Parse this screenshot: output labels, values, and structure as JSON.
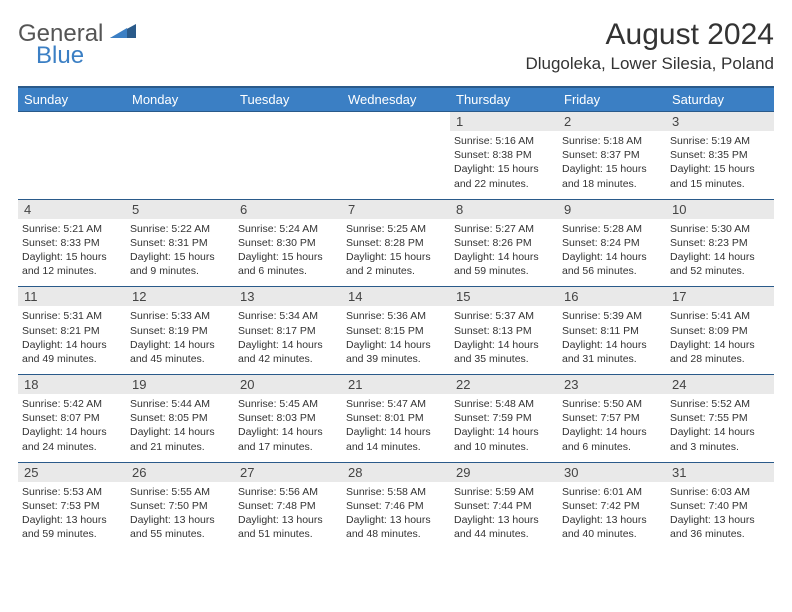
{
  "logo": {
    "textTop": "General",
    "textBottom": "Blue"
  },
  "title": "August 2024",
  "location": "Dlugoleka, Lower Silesia, Poland",
  "colors": {
    "headerBg": "#3b7fc4",
    "headerBorder": "#2a5a8a",
    "dayStripe": "#e9e9e9",
    "text": "#333333",
    "logoBlue": "#3b7fc4",
    "logoGray": "#555555"
  },
  "dayHeaders": [
    "Sunday",
    "Monday",
    "Tuesday",
    "Wednesday",
    "Thursday",
    "Friday",
    "Saturday"
  ],
  "weeks": [
    [
      null,
      null,
      null,
      null,
      {
        "n": "1",
        "sr": "5:16 AM",
        "ss": "8:38 PM",
        "dl": "15 hours and 22 minutes."
      },
      {
        "n": "2",
        "sr": "5:18 AM",
        "ss": "8:37 PM",
        "dl": "15 hours and 18 minutes."
      },
      {
        "n": "3",
        "sr": "5:19 AM",
        "ss": "8:35 PM",
        "dl": "15 hours and 15 minutes."
      }
    ],
    [
      {
        "n": "4",
        "sr": "5:21 AM",
        "ss": "8:33 PM",
        "dl": "15 hours and 12 minutes."
      },
      {
        "n": "5",
        "sr": "5:22 AM",
        "ss": "8:31 PM",
        "dl": "15 hours and 9 minutes."
      },
      {
        "n": "6",
        "sr": "5:24 AM",
        "ss": "8:30 PM",
        "dl": "15 hours and 6 minutes."
      },
      {
        "n": "7",
        "sr": "5:25 AM",
        "ss": "8:28 PM",
        "dl": "15 hours and 2 minutes."
      },
      {
        "n": "8",
        "sr": "5:27 AM",
        "ss": "8:26 PM",
        "dl": "14 hours and 59 minutes."
      },
      {
        "n": "9",
        "sr": "5:28 AM",
        "ss": "8:24 PM",
        "dl": "14 hours and 56 minutes."
      },
      {
        "n": "10",
        "sr": "5:30 AM",
        "ss": "8:23 PM",
        "dl": "14 hours and 52 minutes."
      }
    ],
    [
      {
        "n": "11",
        "sr": "5:31 AM",
        "ss": "8:21 PM",
        "dl": "14 hours and 49 minutes."
      },
      {
        "n": "12",
        "sr": "5:33 AM",
        "ss": "8:19 PM",
        "dl": "14 hours and 45 minutes."
      },
      {
        "n": "13",
        "sr": "5:34 AM",
        "ss": "8:17 PM",
        "dl": "14 hours and 42 minutes."
      },
      {
        "n": "14",
        "sr": "5:36 AM",
        "ss": "8:15 PM",
        "dl": "14 hours and 39 minutes."
      },
      {
        "n": "15",
        "sr": "5:37 AM",
        "ss": "8:13 PM",
        "dl": "14 hours and 35 minutes."
      },
      {
        "n": "16",
        "sr": "5:39 AM",
        "ss": "8:11 PM",
        "dl": "14 hours and 31 minutes."
      },
      {
        "n": "17",
        "sr": "5:41 AM",
        "ss": "8:09 PM",
        "dl": "14 hours and 28 minutes."
      }
    ],
    [
      {
        "n": "18",
        "sr": "5:42 AM",
        "ss": "8:07 PM",
        "dl": "14 hours and 24 minutes."
      },
      {
        "n": "19",
        "sr": "5:44 AM",
        "ss": "8:05 PM",
        "dl": "14 hours and 21 minutes."
      },
      {
        "n": "20",
        "sr": "5:45 AM",
        "ss": "8:03 PM",
        "dl": "14 hours and 17 minutes."
      },
      {
        "n": "21",
        "sr": "5:47 AM",
        "ss": "8:01 PM",
        "dl": "14 hours and 14 minutes."
      },
      {
        "n": "22",
        "sr": "5:48 AM",
        "ss": "7:59 PM",
        "dl": "14 hours and 10 minutes."
      },
      {
        "n": "23",
        "sr": "5:50 AM",
        "ss": "7:57 PM",
        "dl": "14 hours and 6 minutes."
      },
      {
        "n": "24",
        "sr": "5:52 AM",
        "ss": "7:55 PM",
        "dl": "14 hours and 3 minutes."
      }
    ],
    [
      {
        "n": "25",
        "sr": "5:53 AM",
        "ss": "7:53 PM",
        "dl": "13 hours and 59 minutes."
      },
      {
        "n": "26",
        "sr": "5:55 AM",
        "ss": "7:50 PM",
        "dl": "13 hours and 55 minutes."
      },
      {
        "n": "27",
        "sr": "5:56 AM",
        "ss": "7:48 PM",
        "dl": "13 hours and 51 minutes."
      },
      {
        "n": "28",
        "sr": "5:58 AM",
        "ss": "7:46 PM",
        "dl": "13 hours and 48 minutes."
      },
      {
        "n": "29",
        "sr": "5:59 AM",
        "ss": "7:44 PM",
        "dl": "13 hours and 44 minutes."
      },
      {
        "n": "30",
        "sr": "6:01 AM",
        "ss": "7:42 PM",
        "dl": "13 hours and 40 minutes."
      },
      {
        "n": "31",
        "sr": "6:03 AM",
        "ss": "7:40 PM",
        "dl": "13 hours and 36 minutes."
      }
    ]
  ],
  "labels": {
    "sunrise": "Sunrise:",
    "sunset": "Sunset:",
    "daylight": "Daylight:"
  }
}
